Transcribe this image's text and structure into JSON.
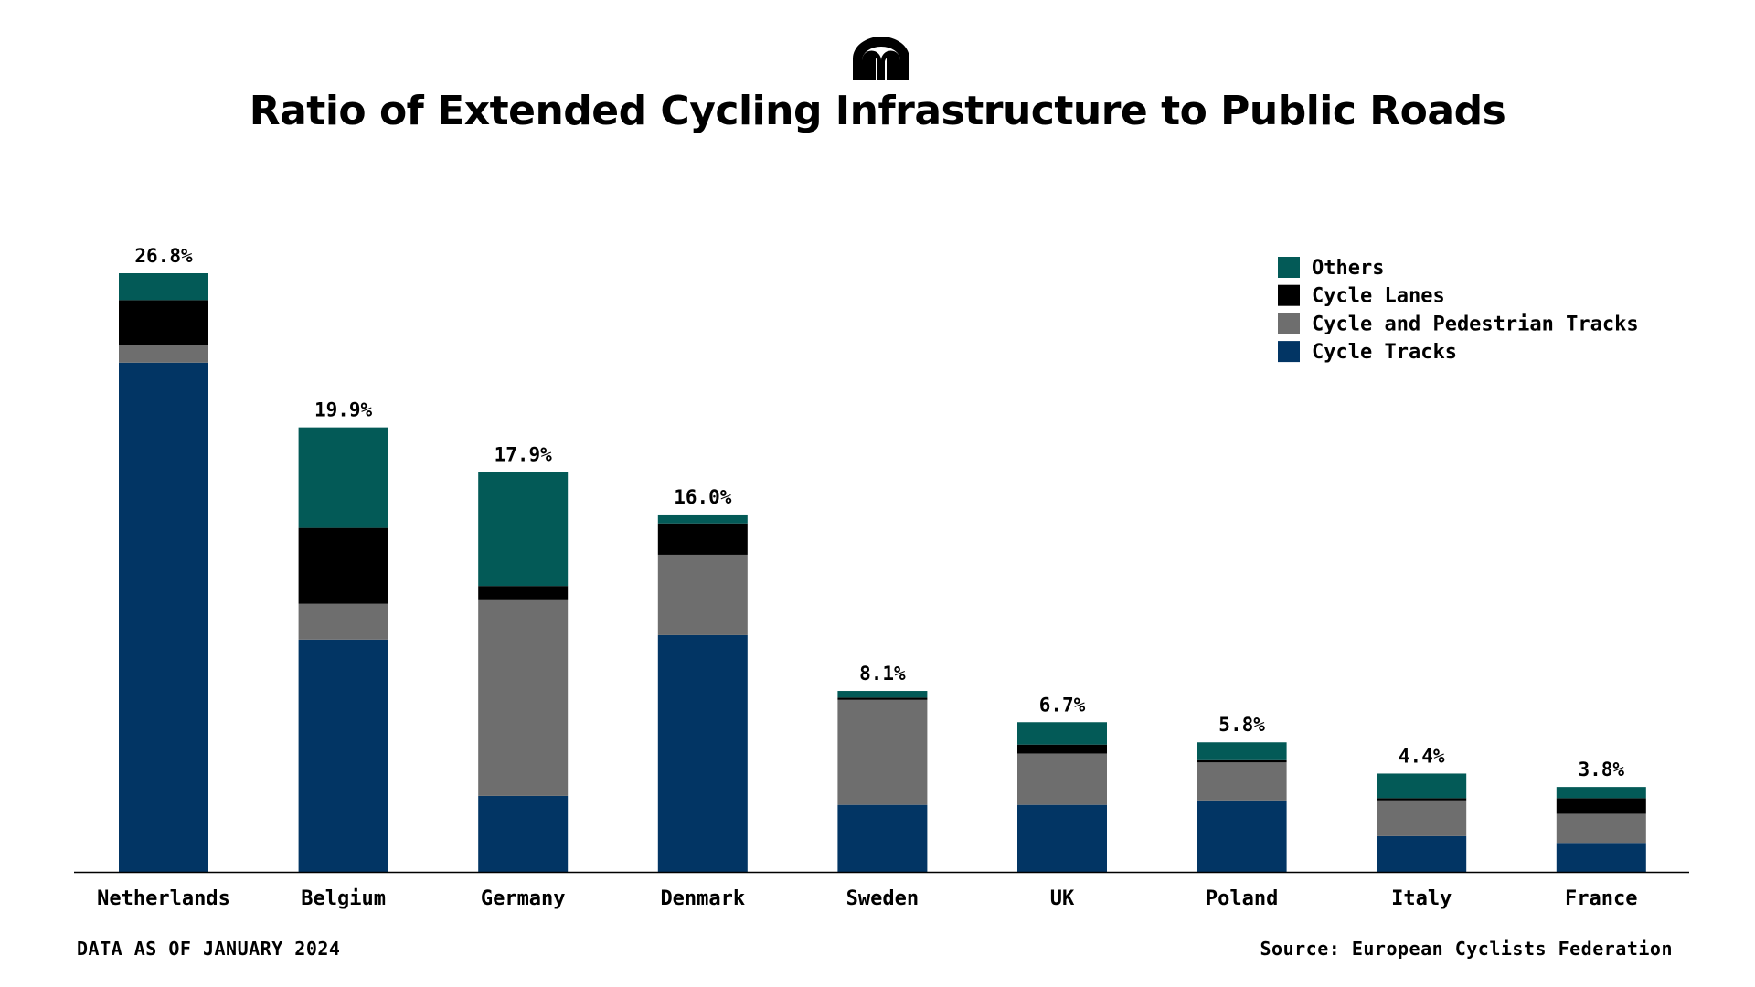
{
  "title": "Ratio of Extended Cycling Infrastructure to Public Roads",
  "footnote": "DATA AS OF JANUARY 2024",
  "source": "Source: European Cyclists Federation",
  "logo": {
    "icon": "arch-logo-icon",
    "color": "#000000"
  },
  "chart_data": {
    "type": "bar",
    "stacked": true,
    "title": "Ratio of Extended Cycling Infrastructure to Public Roads",
    "xlabel": "",
    "ylabel": "",
    "unit": "%",
    "ylim": [
      0,
      26.8
    ],
    "grid": false,
    "legend_position": "top-right",
    "categories": [
      "Netherlands",
      "Belgium",
      "Germany",
      "Denmark",
      "Sweden",
      "UK",
      "Poland",
      "Italy",
      "France"
    ],
    "totals": [
      26.8,
      19.9,
      17.9,
      16.0,
      8.1,
      6.7,
      5.8,
      4.4,
      3.8
    ],
    "total_labels": [
      "26.8%",
      "19.9%",
      "17.9%",
      "16.0%",
      "8.1%",
      "6.7%",
      "5.8%",
      "4.4%",
      "3.8%"
    ],
    "series": [
      {
        "name": "Cycle Tracks",
        "color": "#023564",
        "values": [
          22.8,
          10.4,
          3.4,
          10.6,
          3.0,
          3.0,
          3.2,
          1.6,
          1.3
        ]
      },
      {
        "name": "Cycle and Pedestrian Tracks",
        "color": "#6e6e6e",
        "values": [
          0.8,
          1.6,
          8.8,
          3.6,
          4.7,
          2.3,
          1.7,
          1.6,
          1.3
        ]
      },
      {
        "name": "Cycle Lanes",
        "color": "#000000",
        "values": [
          2.0,
          3.4,
          0.6,
          1.4,
          0.1,
          0.4,
          0.1,
          0.1,
          0.7
        ]
      },
      {
        "name": "Others",
        "color": "#035a57",
        "values": [
          1.2,
          4.5,
          5.1,
          0.4,
          0.3,
          1.0,
          0.8,
          1.1,
          0.5
        ]
      }
    ],
    "legend_order": [
      "Others",
      "Cycle Lanes",
      "Cycle and Pedestrian Tracks",
      "Cycle Tracks"
    ]
  }
}
